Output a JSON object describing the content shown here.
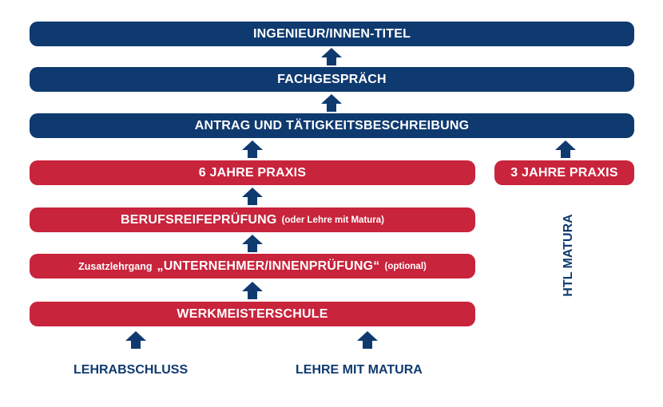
{
  "colors": {
    "blue": "#0f3a70",
    "red": "#c8243c",
    "background": "#ffffff"
  },
  "steps": {
    "ingenieur": "INGENIEUR/INNEN-TITEL",
    "fachgespraech": "FACHGESPRÄCH",
    "antrag": "ANTRAG UND TÄTIGKEITSBESCHREIBUNG",
    "praxis6": "6 JAHRE PRAXIS",
    "praxis3": "3 JAHRE PRAXIS",
    "berufsreife": "BERUFSREIFEPRÜFUNG",
    "berufsreife_note": "(oder Lehre mit Matura)",
    "zusatz_prefix": "Zusatzlehrgang",
    "zusatz_main": "„UNTERNEHMER/INNENPRÜFUNG“",
    "zusatz_note": "(optional)",
    "werkmeister": "WERKMEISTERSCHULE"
  },
  "entries": {
    "lehrabschluss": "LEHRABSCHLUSS",
    "lehre_matura": "LEHRE MIT MATURA",
    "htl_matura": "HTL MATURA"
  },
  "icons": {
    "arrow": "arrow-up-icon"
  }
}
